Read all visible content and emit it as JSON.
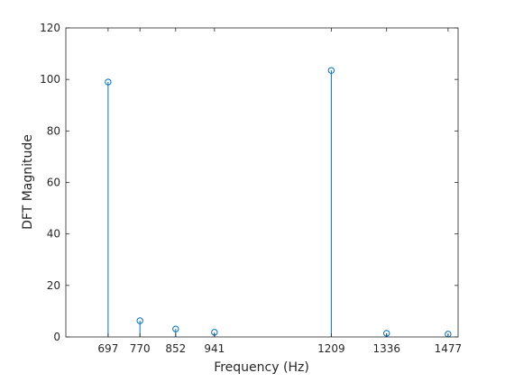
{
  "chart_data": {
    "type": "stem",
    "xlabel": "Frequency (Hz)",
    "ylabel": "DFT Magnitude",
    "x": [
      697,
      770,
      852,
      941,
      1209,
      1336,
      1477
    ],
    "values": [
      99,
      6.3,
      3.1,
      1.8,
      103.5,
      1.4,
      1.1
    ],
    "x_ticks": [
      697,
      770,
      852,
      941,
      1209,
      1336,
      1477
    ],
    "y_ticks": [
      0,
      20,
      40,
      60,
      80,
      100,
      120
    ],
    "xlim": [
      600,
      1500
    ],
    "ylim": [
      0,
      120
    ],
    "marker": "circle",
    "grid": false,
    "color": "#0072BD"
  }
}
